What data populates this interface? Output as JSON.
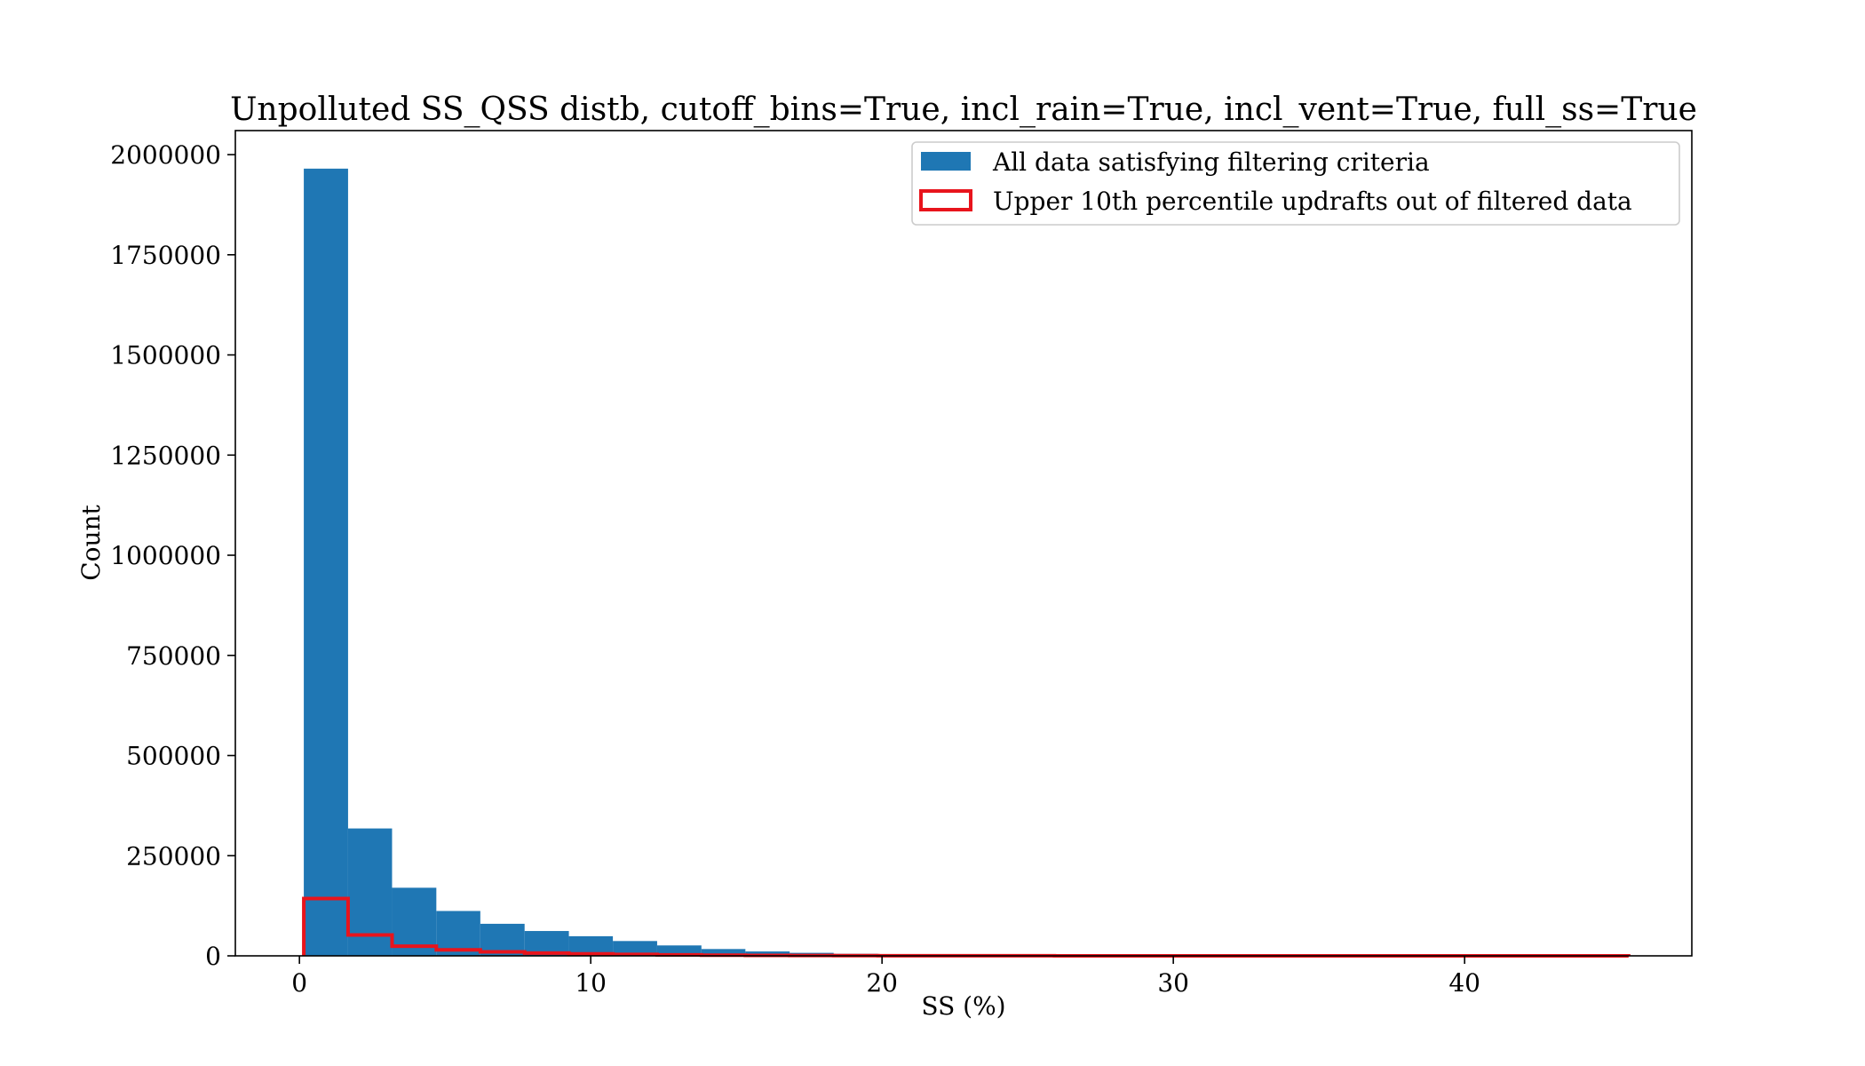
{
  "chart_data": {
    "type": "bar",
    "title": "Unpolluted SS_QSS distb, cutoff_bins=True, incl_rain=True, incl_vent=True, full_ss=True",
    "xlabel": "SS (%)",
    "ylabel": "Count",
    "xlim": [
      -2.2,
      47.8
    ],
    "ylim": [
      0,
      2060000
    ],
    "xticks": [
      0,
      10,
      20,
      30,
      40
    ],
    "yticks": [
      0,
      250000,
      500000,
      750000,
      1000000,
      1250000,
      1500000,
      1750000,
      2000000
    ],
    "bin_edges": [
      0.15,
      1.67,
      3.18,
      4.7,
      6.21,
      7.73,
      9.25,
      10.76,
      12.28,
      13.8,
      15.31,
      16.83,
      18.34,
      19.86,
      21.38,
      22.89,
      24.41,
      25.92,
      27.44,
      28.96,
      30.47,
      31.99,
      33.5,
      35.02,
      36.54,
      38.05,
      39.57,
      41.09,
      42.6,
      44.12,
      45.63
    ],
    "series": [
      {
        "name": "All data satisfying filtering criteria",
        "style": "filled",
        "color": "#1f77b4",
        "values": [
          1965000,
          318000,
          170000,
          112000,
          80000,
          62000,
          49000,
          37000,
          26000,
          17000,
          11000,
          7500,
          5000,
          3500,
          2500,
          1800,
          1200,
          900,
          700,
          500,
          400,
          300,
          250,
          200,
          150,
          120,
          100,
          80,
          60,
          40
        ]
      },
      {
        "name": "Upper 10th percentile updrafts out of filtered data",
        "style": "step",
        "color": "#e8141c",
        "values": [
          143000,
          52000,
          24000,
          15000,
          10000,
          7000,
          5000,
          3500,
          2500,
          1800,
          1200,
          900,
          600,
          400,
          300,
          200,
          150,
          100,
          80,
          60,
          50,
          40,
          30,
          25,
          20,
          15,
          10,
          8,
          5,
          3
        ]
      }
    ],
    "legend_position": "top-right"
  }
}
